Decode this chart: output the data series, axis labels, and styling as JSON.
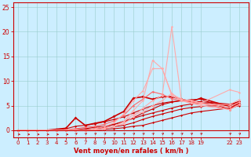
{
  "bg_color": "#cceeff",
  "grid_color": "#99cccc",
  "line_color_dark": "#cc0000",
  "xlabel": "Vent moyen/en rafales ( km/h )",
  "xlabel_color": "#cc0000",
  "tick_color": "#cc0000",
  "axis_color": "#cc0000",
  "xticks": [
    0,
    1,
    2,
    3,
    4,
    5,
    6,
    7,
    8,
    9,
    10,
    11,
    12,
    13,
    14,
    15,
    16,
    17,
    18,
    19,
    22,
    23
  ],
  "yticks": [
    0,
    5,
    10,
    15,
    20,
    25
  ],
  "xlim": [
    -0.5,
    24.0
  ],
  "ylim": [
    -1.5,
    26
  ],
  "series": [
    {
      "x": [
        0,
        1,
        2,
        3,
        4,
        5,
        6,
        7,
        8,
        9,
        10,
        11,
        12,
        13,
        14,
        15,
        16,
        17,
        18,
        19,
        22,
        23
      ],
      "y": [
        0,
        0,
        0,
        0,
        0,
        0,
        0,
        0,
        0.1,
        0.2,
        0.3,
        0.5,
        0.8,
        1.0,
        1.5,
        2.0,
        2.5,
        3.0,
        3.5,
        3.8,
        4.5,
        5.0
      ],
      "color": "#cc0000",
      "lw": 0.8,
      "marker": "D",
      "ms": 1.5
    },
    {
      "x": [
        0,
        1,
        2,
        3,
        4,
        5,
        6,
        7,
        8,
        9,
        10,
        11,
        12,
        13,
        14,
        15,
        16,
        17,
        18,
        19,
        22,
        23
      ],
      "y": [
        0,
        0,
        0,
        0,
        0,
        0,
        0,
        0.1,
        0.2,
        0.4,
        0.7,
        1.0,
        1.5,
        2.2,
        2.8,
        3.3,
        3.8,
        4.3,
        4.6,
        4.8,
        5.2,
        5.8
      ],
      "color": "#cc0000",
      "lw": 0.8,
      "marker": "D",
      "ms": 1.5
    },
    {
      "x": [
        0,
        1,
        2,
        3,
        4,
        5,
        6,
        7,
        8,
        9,
        10,
        11,
        12,
        13,
        14,
        15,
        16,
        17,
        18,
        19,
        22,
        23
      ],
      "y": [
        0,
        0,
        0,
        0,
        0,
        0,
        0.1,
        0.3,
        0.6,
        0.8,
        1.2,
        1.7,
        2.4,
        3.0,
        3.5,
        4.0,
        4.5,
        5.0,
        5.3,
        5.5,
        5.2,
        5.5
      ],
      "color": "#cc0000",
      "lw": 0.8,
      "marker": "D",
      "ms": 1.5
    },
    {
      "x": [
        0,
        1,
        2,
        3,
        4,
        5,
        6,
        7,
        8,
        9,
        10,
        11,
        12,
        13,
        14,
        15,
        16,
        17,
        18,
        19,
        22,
        23
      ],
      "y": [
        0,
        0,
        0,
        0,
        0,
        0.3,
        0.8,
        1.0,
        1.3,
        1.7,
        2.2,
        2.7,
        3.5,
        4.3,
        5.0,
        5.5,
        5.8,
        6.0,
        6.2,
        6.3,
        4.2,
        5.8
      ],
      "color": "#cc0000",
      "lw": 0.8,
      "marker": "D",
      "ms": 1.5
    },
    {
      "x": [
        0,
        1,
        2,
        3,
        4,
        5,
        6,
        7,
        8,
        9,
        10,
        11,
        12,
        13,
        14,
        15,
        16,
        17,
        18,
        19,
        22,
        23
      ],
      "y": [
        0,
        0,
        0,
        0,
        0,
        0,
        0,
        0.1,
        0.3,
        0.6,
        1.2,
        1.8,
        2.5,
        3.5,
        4.3,
        5.2,
        5.7,
        6.0,
        5.8,
        5.8,
        5.3,
        5.8
      ],
      "color": "#cc0000",
      "lw": 0.8,
      "marker": "D",
      "ms": 1.5
    },
    {
      "x": [
        0,
        1,
        2,
        3,
        4,
        5,
        6,
        7,
        8,
        9,
        10,
        11,
        12,
        13,
        14,
        15,
        16,
        17,
        18,
        19,
        22,
        23
      ],
      "y": [
        0,
        0,
        0,
        0,
        0.2,
        0.4,
        2.5,
        1.0,
        1.4,
        1.8,
        2.8,
        3.8,
        6.5,
        6.8,
        6.3,
        6.8,
        6.8,
        6.3,
        5.8,
        6.5,
        4.8,
        5.3
      ],
      "color": "#cc0000",
      "lw": 1.2,
      "marker": "D",
      "ms": 2.0
    },
    {
      "x": [
        0,
        1,
        2,
        3,
        4,
        5,
        6,
        7,
        8,
        9,
        10,
        11,
        12,
        13,
        14,
        15,
        16,
        17,
        18,
        19,
        22,
        23
      ],
      "y": [
        0,
        0,
        0,
        0,
        0,
        0.1,
        0.3,
        0.6,
        0.8,
        1.2,
        1.9,
        3.0,
        5.0,
        6.3,
        7.8,
        7.3,
        6.4,
        6.0,
        5.7,
        5.5,
        4.2,
        5.2
      ],
      "color": "#ff6666",
      "lw": 0.8,
      "marker": "o",
      "ms": 1.8
    },
    {
      "x": [
        0,
        1,
        2,
        3,
        4,
        5,
        6,
        7,
        8,
        9,
        10,
        11,
        12,
        13,
        14,
        15,
        16,
        17,
        18,
        19,
        22,
        23
      ],
      "y": [
        0,
        0,
        0,
        0,
        0,
        0,
        0,
        0,
        0.3,
        0.7,
        1.5,
        3.3,
        6.0,
        8.0,
        12.5,
        12.5,
        7.3,
        6.3,
        6.0,
        5.5,
        4.7,
        5.7
      ],
      "color": "#ffaaaa",
      "lw": 0.8,
      "marker": "o",
      "ms": 1.8
    },
    {
      "x": [
        0,
        1,
        2,
        3,
        4,
        5,
        6,
        7,
        8,
        9,
        10,
        11,
        12,
        13,
        14,
        15,
        16,
        17,
        18,
        19,
        22,
        23
      ],
      "y": [
        0,
        0,
        0,
        0,
        0,
        0,
        0,
        0,
        0.1,
        0.4,
        0.8,
        1.7,
        4.0,
        6.0,
        14.2,
        12.5,
        7.0,
        6.0,
        5.5,
        5.0,
        4.2,
        5.2
      ],
      "color": "#ffaaaa",
      "lw": 0.8,
      "marker": "o",
      "ms": 1.8
    },
    {
      "x": [
        0,
        1,
        2,
        3,
        4,
        5,
        6,
        7,
        8,
        9,
        10,
        11,
        12,
        13,
        14,
        15,
        16,
        17,
        18,
        19,
        22,
        23
      ],
      "y": [
        0,
        0,
        0,
        0,
        0,
        0,
        0,
        0,
        0.1,
        0.3,
        0.8,
        1.3,
        2.7,
        4.5,
        6.0,
        7.0,
        21.0,
        6.0,
        5.5,
        5.3,
        5.2,
        6.2
      ],
      "color": "#ffaaaa",
      "lw": 0.8,
      "marker": "o",
      "ms": 1.8
    },
    {
      "x": [
        0,
        1,
        2,
        3,
        4,
        5,
        6,
        7,
        8,
        9,
        10,
        11,
        12,
        13,
        14,
        15,
        16,
        17,
        18,
        19,
        22,
        23
      ],
      "y": [
        0,
        0,
        0,
        0,
        0,
        0,
        0,
        0,
        0.1,
        0.3,
        0.8,
        1.7,
        3.2,
        3.7,
        5.0,
        6.0,
        7.5,
        6.0,
        6.0,
        5.5,
        8.2,
        7.7
      ],
      "color": "#ffaaaa",
      "lw": 0.8,
      "marker": "o",
      "ms": 1.8
    }
  ],
  "arrow_xs_horiz": [
    0,
    1,
    2,
    3,
    4,
    5
  ],
  "arrow_xs_diag": [
    6,
    7,
    8,
    9,
    10,
    11,
    12,
    13,
    14,
    15,
    16,
    17,
    18,
    19,
    22,
    23
  ]
}
